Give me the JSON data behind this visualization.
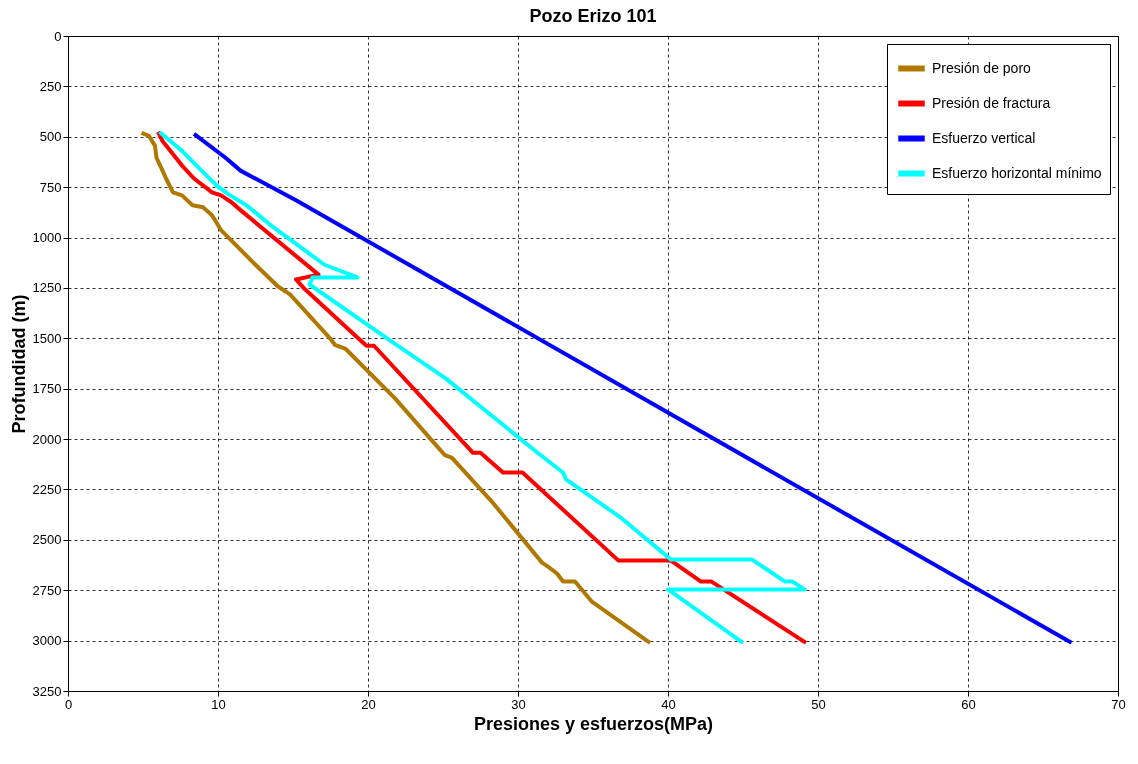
{
  "chart_data": {
    "type": "line",
    "title": "Pozo Erizo 101",
    "xlabel": "Presiones y esfuerzos(MPa)",
    "ylabel": "Profundidad (m)",
    "xlim": [
      0,
      70
    ],
    "xticks": [
      0,
      10,
      20,
      30,
      40,
      50,
      60,
      70
    ],
    "ylim": [
      3250,
      0
    ],
    "yticks": [
      0,
      250,
      500,
      750,
      1000,
      1250,
      1500,
      1750,
      2000,
      2250,
      2500,
      2750,
      3000,
      3250
    ],
    "grid": true,
    "legend": "top right",
    "line_style": "solid",
    "series": [
      {
        "name": "Presión de poro",
        "color": "#b07800",
        "x": [
          4.9,
          5.4,
          5.8,
          5.9,
          6.3,
          6.6,
          7.0,
          7.6,
          8.3,
          9.0,
          9.6,
          10.2,
          12.5,
          14.0,
          14.8,
          17.5,
          17.8,
          18.5,
          21.8,
          24.4,
          25.1,
          25.6,
          28.3,
          31.6,
          32.0,
          32.6,
          33.0,
          33.8,
          34.9,
          38.8
        ],
        "values": [
          481,
          496,
          545,
          604,
          668,
          717,
          776,
          791,
          840,
          850,
          889,
          963,
          1135,
          1243,
          1282,
          1503,
          1533,
          1552,
          1798,
          2019,
          2078,
          2093,
          2314,
          2613,
          2633,
          2667,
          2707,
          2707,
          2805,
          3011
        ]
      },
      {
        "name": "Presión de fractura",
        "color": "#ff0000",
        "x": [
          6.0,
          6.3,
          7.6,
          8.4,
          9.6,
          10.2,
          10.9,
          11.5,
          16.7,
          15.2,
          15.8,
          19.4,
          19.9,
          20.4,
          27.0,
          27.5,
          29.0,
          30.3,
          36.7,
          40.2,
          42.2,
          42.9,
          49.2
        ],
        "values": [
          476,
          521,
          643,
          707,
          776,
          791,
          825,
          864,
          1184,
          1208,
          1257,
          1503,
          1537,
          1537,
          2068,
          2068,
          2166,
          2166,
          2603,
          2603,
          2707,
          2707,
          3011
        ]
      },
      {
        "name": "Esfuerzo vertical",
        "color": "#0000ff",
        "x": [
          8.4,
          10.5,
          11.5,
          15.2,
          66.9
        ],
        "values": [
          486,
          604,
          668,
          815,
          3011
        ]
      },
      {
        "name": "Esfuerzo horizontal mínimo",
        "color": "#00ffff",
        "x": [
          6.1,
          7.6,
          8.9,
          9.9,
          10.7,
          11.9,
          13.5,
          17.1,
          19.3,
          16.3,
          16.1,
          21.8,
          25.2,
          31.3,
          33.0,
          33.2,
          36.8,
          40.2,
          45.6,
          47.8,
          48.3,
          49.1,
          40.0,
          45.0
        ],
        "values": [
          476,
          570,
          668,
          741,
          786,
          840,
          938,
          1135,
          1198,
          1198,
          1233,
          1528,
          1700,
          2068,
          2166,
          2200,
          2387,
          2598,
          2598,
          2707,
          2707,
          2746,
          2746,
          3011
        ]
      }
    ]
  }
}
